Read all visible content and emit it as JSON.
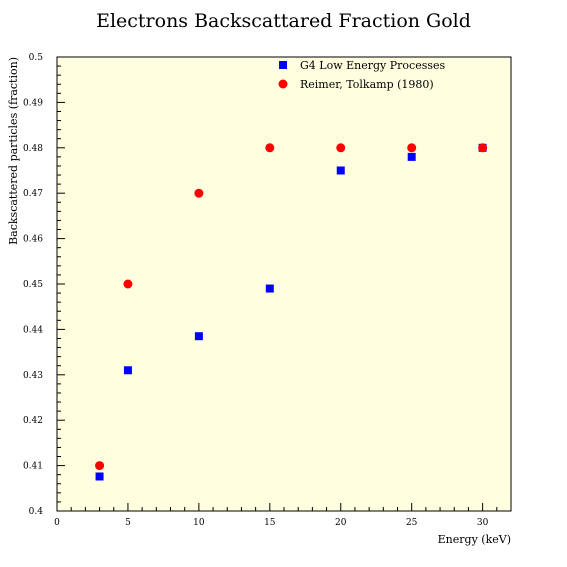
{
  "chart_data": {
    "type": "scatter",
    "title": "Electrons Backscattared Fraction Gold",
    "xlabel": "Energy (keV)",
    "ylabel": "Backscattered particles (fraction)",
    "xlim": [
      0,
      32
    ],
    "ylim": [
      0.4,
      0.5
    ],
    "xticks": [
      0,
      5,
      10,
      15,
      20,
      25,
      30
    ],
    "xtick_labels": [
      "0",
      "5",
      "10",
      "15",
      "20",
      "25",
      "30"
    ],
    "yticks": [
      0.4,
      0.41,
      0.42,
      0.43,
      0.44,
      0.45,
      0.46,
      0.47,
      0.48,
      0.49,
      0.5
    ],
    "ytick_labels": [
      "0.4",
      "0.41",
      "0.42",
      "0.43",
      "0.44",
      "0.45",
      "0.46",
      "0.47",
      "0.48",
      "0.49",
      "0.5"
    ],
    "grid": false,
    "legend_position": "top-right",
    "plot_background": "#ffffe0",
    "series": [
      {
        "name": "G4 Low Energy Processes",
        "marker": "square",
        "color": "#0000ff",
        "points": [
          [
            3,
            0.4076
          ],
          [
            5,
            0.431
          ],
          [
            10,
            0.4385
          ],
          [
            15,
            0.449
          ],
          [
            20,
            0.475
          ],
          [
            25,
            0.478
          ],
          [
            30,
            0.48
          ]
        ]
      },
      {
        "name": "Reimer, Tolkamp (1980)",
        "marker": "circle",
        "color": "#ff0000",
        "points": [
          [
            3,
            0.41
          ],
          [
            5,
            0.45
          ],
          [
            10,
            0.47
          ],
          [
            15,
            0.48
          ],
          [
            20,
            0.48
          ],
          [
            25,
            0.48
          ],
          [
            30,
            0.48
          ]
        ]
      }
    ]
  }
}
